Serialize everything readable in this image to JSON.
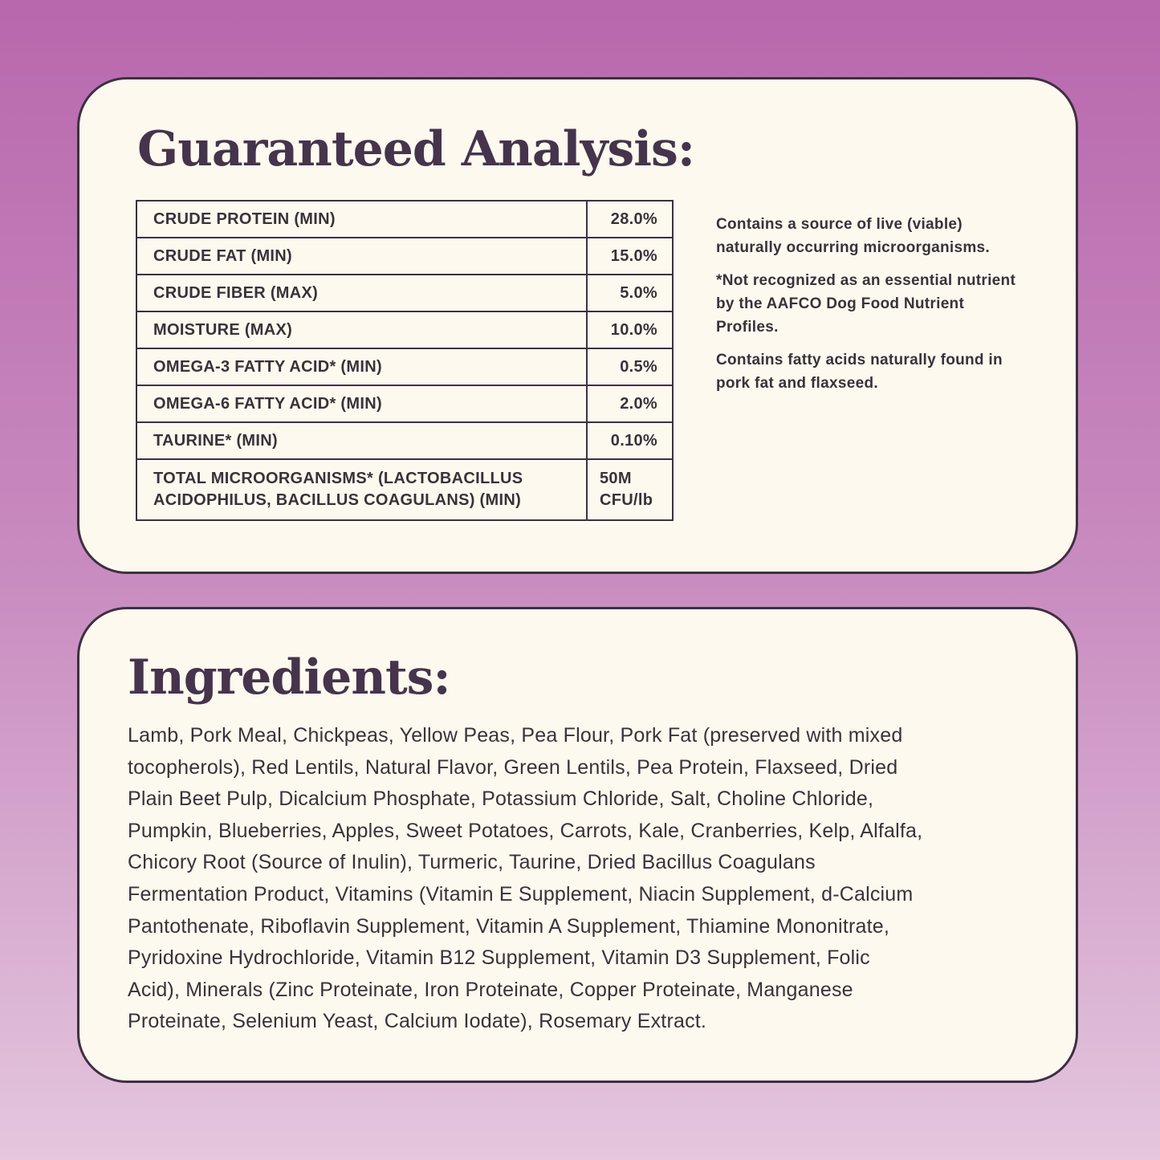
{
  "guaranteed_analysis": {
    "title": "Guaranteed Analysis:",
    "rows": [
      {
        "label": "CRUDE PROTEIN (MIN)",
        "value": "28.0%"
      },
      {
        "label": "CRUDE FAT (MIN)",
        "value": "15.0%"
      },
      {
        "label": "CRUDE FIBER (MAX)",
        "value": "5.0%"
      },
      {
        "label": "MOISTURE (MAX)",
        "value": "10.0%"
      },
      {
        "label": "OMEGA-3 FATTY ACID* (MIN)",
        "value": "0.5%"
      },
      {
        "label": "OMEGA-6 FATTY ACID* (MIN)",
        "value": "2.0%"
      },
      {
        "label": "TAURINE* (MIN)",
        "value": "0.10%"
      },
      {
        "label_line1": "TOTAL MICROORGANISMS* (LACTOBACILLUS",
        "label_line2": "ACIDOPHILUS, BACILLUS COAGULANS) (MIN)",
        "value_line1": "50M",
        "value_line2": "CFU/lb"
      }
    ],
    "notes": [
      "Contains a source of live (viable) naturally occurring microorganisms.",
      "*Not recognized as an essential nutrient by the AAFCO Dog Food Nutrient Profiles.",
      "Contains fatty acids naturally found in pork fat and flaxseed."
    ]
  },
  "ingredients": {
    "title": "Ingredients:",
    "lines": [
      "Lamb, Pork Meal, Chickpeas, Yellow Peas, Pea Flour, Pork Fat (preserved with mixed",
      "tocopherols), Red Lentils, Natural Flavor, Green Lentils, Pea Protein, Flaxseed, Dried",
      "Plain Beet Pulp, Dicalcium Phosphate, Potassium Chloride, Salt, Choline Chloride,",
      "Pumpkin, Blueberries, Apples, Sweet Potatoes, Carrots, Kale, Cranberries, Kelp, Alfalfa,",
      "Chicory Root (Source of Inulin), Turmeric, Taurine, Dried Bacillus Coagulans",
      "Fermentation Product, Vitamins (Vitamin E Supplement, Niacin Supplement, d-Calcium",
      "Pantothenate, Riboflavin Supplement, Vitamin A Supplement, Thiamine Mononitrate,",
      "Pyridoxine Hydrochloride, Vitamin B12 Supplement, Vitamin D3 Supplement, Folic",
      "Acid), Minerals (Zinc Proteinate, Iron Proteinate, Copper Proteinate, Manganese",
      "Proteinate, Selenium Yeast, Calcium Iodate), Rosemary Extract."
    ]
  },
  "colors": {
    "background_top": "#b868ad",
    "background_bottom": "#e4c6de",
    "card": "#fdf9ef",
    "title": "#45344c",
    "border": "#3f2f42"
  }
}
